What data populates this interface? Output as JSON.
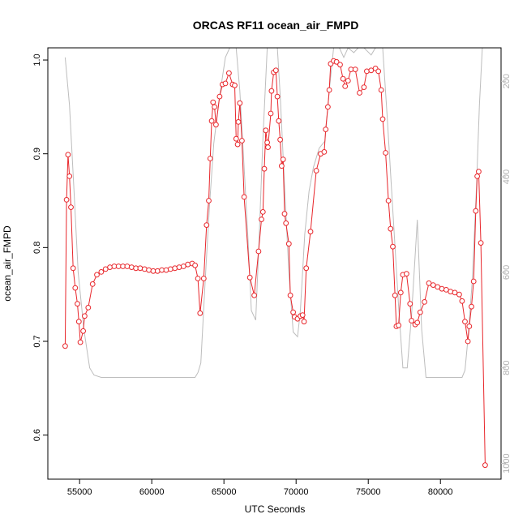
{
  "chart_data": {
    "type": "line",
    "title": "ORCAS RF11 ocean_air_FMPD",
    "xlabel": "UTC Seconds",
    "ylabel": "ocean_air_FMPD",
    "xlim": [
      52800,
      84200
    ],
    "ylim": [
      0.553,
      1.013
    ],
    "y2lim": [
      1033,
      130
    ],
    "y2_reversed": true,
    "x_ticks": [
      55000,
      60000,
      65000,
      70000,
      75000,
      80000
    ],
    "y_ticks": [
      0.6,
      0.7,
      0.8,
      0.9,
      1.0
    ],
    "y2_ticks": [
      200,
      400,
      600,
      800,
      1000
    ],
    "grid": false,
    "colors": {
      "main": "#e8262b",
      "secondary": "#bdbdbd"
    },
    "series": [
      {
        "style": "line-with-points",
        "points": [
          [
            54000,
            0.695
          ],
          [
            54100,
            0.851
          ],
          [
            54200,
            0.899
          ],
          [
            54300,
            0.876
          ],
          [
            54400,
            0.843
          ],
          [
            54550,
            0.778
          ],
          [
            54700,
            0.757
          ],
          [
            54850,
            0.74
          ],
          [
            54950,
            0.721
          ],
          [
            55050,
            0.699
          ],
          [
            55250,
            0.711
          ],
          [
            55350,
            0.727
          ],
          [
            55600,
            0.736
          ],
          [
            55900,
            0.761
          ],
          [
            56200,
            0.771
          ],
          [
            56500,
            0.774
          ],
          [
            56800,
            0.777
          ],
          [
            57100,
            0.779
          ],
          [
            57400,
            0.78
          ],
          [
            57700,
            0.78
          ],
          [
            58000,
            0.78
          ],
          [
            58300,
            0.78
          ],
          [
            58600,
            0.779
          ],
          [
            58900,
            0.778
          ],
          [
            59200,
            0.778
          ],
          [
            59500,
            0.777
          ],
          [
            59800,
            0.776
          ],
          [
            60100,
            0.775
          ],
          [
            60400,
            0.775
          ],
          [
            60700,
            0.776
          ],
          [
            61000,
            0.776
          ],
          [
            61300,
            0.777
          ],
          [
            61600,
            0.778
          ],
          [
            61900,
            0.779
          ],
          [
            62200,
            0.78
          ],
          [
            62500,
            0.782
          ],
          [
            62800,
            0.783
          ],
          [
            63000,
            0.781
          ],
          [
            63200,
            0.767
          ],
          [
            63350,
            0.73
          ],
          [
            63600,
            0.767
          ],
          [
            63800,
            0.824
          ],
          [
            63950,
            0.85
          ],
          [
            64050,
            0.895
          ],
          [
            64150,
            0.935
          ],
          [
            64250,
            0.955
          ],
          [
            64350,
            0.95
          ],
          [
            64450,
            0.931
          ],
          [
            64700,
            0.961
          ],
          [
            64900,
            0.974
          ],
          [
            65100,
            0.975
          ],
          [
            65350,
            0.986
          ],
          [
            65600,
            0.974
          ],
          [
            65750,
            0.973
          ],
          [
            65850,
            0.916
          ],
          [
            65950,
            0.91
          ],
          [
            66000,
            0.934
          ],
          [
            66100,
            0.954
          ],
          [
            66250,
            0.914
          ],
          [
            66400,
            0.854
          ],
          [
            66800,
            0.768
          ],
          [
            67100,
            0.749
          ],
          [
            67400,
            0.796
          ],
          [
            67600,
            0.83
          ],
          [
            67700,
            0.838
          ],
          [
            67800,
            0.884
          ],
          [
            67900,
            0.925
          ],
          [
            68000,
            0.912
          ],
          [
            68050,
            0.907
          ],
          [
            68250,
            0.943
          ],
          [
            68300,
            0.967
          ],
          [
            68450,
            0.987
          ],
          [
            68600,
            0.989
          ],
          [
            68700,
            0.961
          ],
          [
            68800,
            0.935
          ],
          [
            68900,
            0.915
          ],
          [
            69000,
            0.887
          ],
          [
            69100,
            0.894
          ],
          [
            69200,
            0.836
          ],
          [
            69300,
            0.826
          ],
          [
            69500,
            0.804
          ],
          [
            69600,
            0.749
          ],
          [
            69800,
            0.731
          ],
          [
            69900,
            0.726
          ],
          [
            70100,
            0.724
          ],
          [
            70300,
            0.727
          ],
          [
            70450,
            0.728
          ],
          [
            70550,
            0.721
          ],
          [
            70700,
            0.778
          ],
          [
            71000,
            0.817
          ],
          [
            71400,
            0.882
          ],
          [
            71700,
            0.9
          ],
          [
            71950,
            0.902
          ],
          [
            72050,
            0.926
          ],
          [
            72200,
            0.95
          ],
          [
            72300,
            0.968
          ],
          [
            72400,
            0.996
          ],
          [
            72600,
            0.999
          ],
          [
            72800,
            0.998
          ],
          [
            73050,
            0.995
          ],
          [
            73250,
            0.98
          ],
          [
            73400,
            0.972
          ],
          [
            73600,
            0.978
          ],
          [
            73800,
            0.99
          ],
          [
            74100,
            0.99
          ],
          [
            74400,
            0.965
          ],
          [
            74700,
            0.971
          ],
          [
            74900,
            0.988
          ],
          [
            75200,
            0.989
          ],
          [
            75500,
            0.991
          ],
          [
            75700,
            0.988
          ],
          [
            75900,
            0.968
          ],
          [
            76000,
            0.937
          ],
          [
            76200,
            0.901
          ],
          [
            76400,
            0.85
          ],
          [
            76550,
            0.82
          ],
          [
            76700,
            0.801
          ],
          [
            76850,
            0.749
          ],
          [
            76950,
            0.716
          ],
          [
            77100,
            0.717
          ],
          [
            77250,
            0.752
          ],
          [
            77400,
            0.771
          ],
          [
            77650,
            0.772
          ],
          [
            77900,
            0.74
          ],
          [
            78000,
            0.722
          ],
          [
            78250,
            0.718
          ],
          [
            78400,
            0.72
          ],
          [
            78600,
            0.731
          ],
          [
            78900,
            0.742
          ],
          [
            79200,
            0.762
          ],
          [
            79500,
            0.76
          ],
          [
            79800,
            0.758
          ],
          [
            80100,
            0.756
          ],
          [
            80400,
            0.755
          ],
          [
            80700,
            0.753
          ],
          [
            81000,
            0.752
          ],
          [
            81300,
            0.75
          ],
          [
            81500,
            0.743
          ],
          [
            81700,
            0.721
          ],
          [
            81900,
            0.7
          ],
          [
            82000,
            0.716
          ],
          [
            82150,
            0.737
          ],
          [
            82300,
            0.764
          ],
          [
            82450,
            0.839
          ],
          [
            82550,
            0.876
          ],
          [
            82650,
            0.881
          ],
          [
            82800,
            0.805
          ],
          [
            83100,
            0.568
          ]
        ]
      },
      {
        "style": "line",
        "axis": "right",
        "points": [
          [
            54000,
            150
          ],
          [
            54300,
            250
          ],
          [
            54600,
            420
          ],
          [
            54900,
            600
          ],
          [
            55300,
            720
          ],
          [
            55700,
            800
          ],
          [
            56000,
            815
          ],
          [
            56500,
            820
          ],
          [
            58000,
            820
          ],
          [
            60000,
            820
          ],
          [
            62000,
            820
          ],
          [
            63000,
            820
          ],
          [
            63200,
            810
          ],
          [
            63400,
            790
          ],
          [
            63700,
            620
          ],
          [
            64000,
            460
          ],
          [
            64300,
            330
          ],
          [
            64700,
            230
          ],
          [
            65100,
            150
          ],
          [
            65400,
            130
          ],
          [
            65700,
            130
          ],
          [
            65850,
            130
          ],
          [
            66100,
            220
          ],
          [
            66400,
            380
          ],
          [
            66700,
            550
          ],
          [
            66900,
            680
          ],
          [
            67200,
            700
          ],
          [
            67400,
            560
          ],
          [
            67700,
            320
          ],
          [
            68000,
            130
          ],
          [
            68400,
            130
          ],
          [
            68700,
            130
          ],
          [
            68900,
            230
          ],
          [
            69200,
            420
          ],
          [
            69500,
            600
          ],
          [
            69800,
            725
          ],
          [
            70100,
            735
          ],
          [
            70300,
            680
          ],
          [
            70600,
            520
          ],
          [
            70900,
            430
          ],
          [
            71200,
            380
          ],
          [
            71600,
            340
          ],
          [
            72000,
            325
          ],
          [
            72300,
            220
          ],
          [
            72600,
            130
          ],
          [
            73000,
            130
          ],
          [
            73300,
            150
          ],
          [
            73600,
            130
          ],
          [
            74000,
            140
          ],
          [
            74300,
            130
          ],
          [
            74700,
            130
          ],
          [
            75200,
            145
          ],
          [
            75500,
            130
          ],
          [
            76000,
            130
          ],
          [
            76300,
            270
          ],
          [
            76700,
            470
          ],
          [
            77100,
            670
          ],
          [
            77400,
            800
          ],
          [
            77700,
            800
          ],
          [
            78000,
            690
          ],
          [
            78400,
            490
          ],
          [
            78700,
            720
          ],
          [
            79000,
            820
          ],
          [
            79500,
            820
          ],
          [
            80500,
            820
          ],
          [
            81500,
            820
          ],
          [
            81700,
            805
          ],
          [
            81900,
            740
          ],
          [
            82200,
            620
          ],
          [
            82500,
            420
          ],
          [
            82700,
            250
          ],
          [
            82900,
            130
          ]
        ]
      }
    ]
  }
}
